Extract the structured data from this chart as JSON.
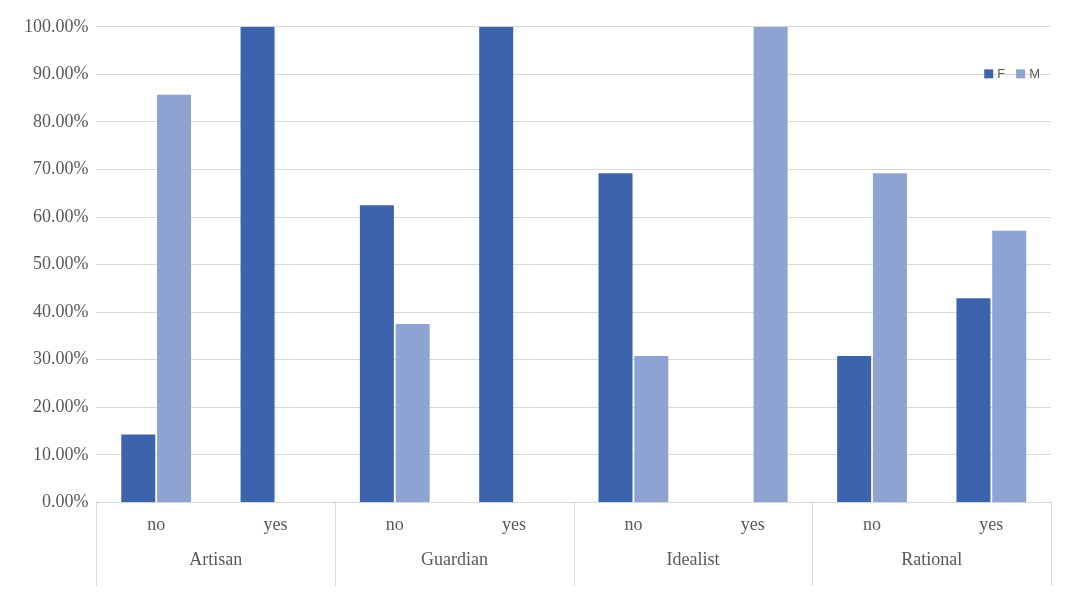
{
  "chart_data": {
    "type": "bar",
    "categories": [
      "no",
      "yes",
      "no",
      "yes",
      "no",
      "yes",
      "no",
      "yes"
    ],
    "series": [
      {
        "name": "F",
        "color": "#3c64ad",
        "values": [
          14.3,
          100,
          62.5,
          100,
          69.2,
          null,
          30.8,
          42.9
        ]
      },
      {
        "name": "M",
        "color": "#8fa3d3",
        "values": [
          85.7,
          null,
          37.5,
          null,
          30.8,
          100,
          69.2,
          57.1
        ]
      }
    ],
    "annotations": [
      "Artisan",
      "Guardian",
      "Idealist",
      "Rational"
    ],
    "ylim": [
      0,
      100
    ],
    "yticks": [
      {
        "value": 0,
        "label": "0.00%"
      },
      {
        "value": 10,
        "label": "10.00%"
      },
      {
        "value": 20,
        "label": "20.00%"
      },
      {
        "value": 30,
        "label": "30.00%"
      },
      {
        "value": 40,
        "label": "40.00%"
      },
      {
        "value": 50,
        "label": "50.00%"
      },
      {
        "value": 60,
        "label": "60.00%"
      },
      {
        "value": 70,
        "label": "70.00%"
      },
      {
        "value": 80,
        "label": "80.00%"
      },
      {
        "value": 90,
        "label": "90.00%"
      },
      {
        "value": 100,
        "label": "100.00%"
      }
    ],
    "grid": "y",
    "legend": "top right"
  }
}
